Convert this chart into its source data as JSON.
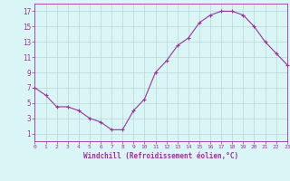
{
  "x": [
    0,
    1,
    2,
    3,
    4,
    5,
    6,
    7,
    8,
    9,
    10,
    11,
    12,
    13,
    14,
    15,
    16,
    17,
    18,
    19,
    20,
    21,
    22,
    23
  ],
  "y": [
    7,
    6,
    4.5,
    4.5,
    4,
    3,
    2.5,
    1.5,
    1.5,
    4,
    5.5,
    9,
    10.5,
    12.5,
    13.5,
    15.5,
    16.5,
    17,
    17,
    16.5,
    15,
    13,
    11.5,
    10
  ],
  "line_color": "#993399",
  "marker": "+",
  "marker_size": 3,
  "bg_color": "#d9f5f5",
  "grid_color": "#b8d8d8",
  "xlabel": "Windchill (Refroidissement éolien,°C)",
  "ylabel_ticks": [
    1,
    3,
    5,
    7,
    9,
    11,
    13,
    15,
    17
  ],
  "xticks": [
    0,
    1,
    2,
    3,
    4,
    5,
    6,
    7,
    8,
    9,
    10,
    11,
    12,
    13,
    14,
    15,
    16,
    17,
    18,
    19,
    20,
    21,
    22,
    23
  ],
  "xlim": [
    0,
    23
  ],
  "ylim": [
    0,
    18
  ],
  "line_color_hex": "#993399",
  "tick_color": "#993399",
  "font_family": "monospace"
}
